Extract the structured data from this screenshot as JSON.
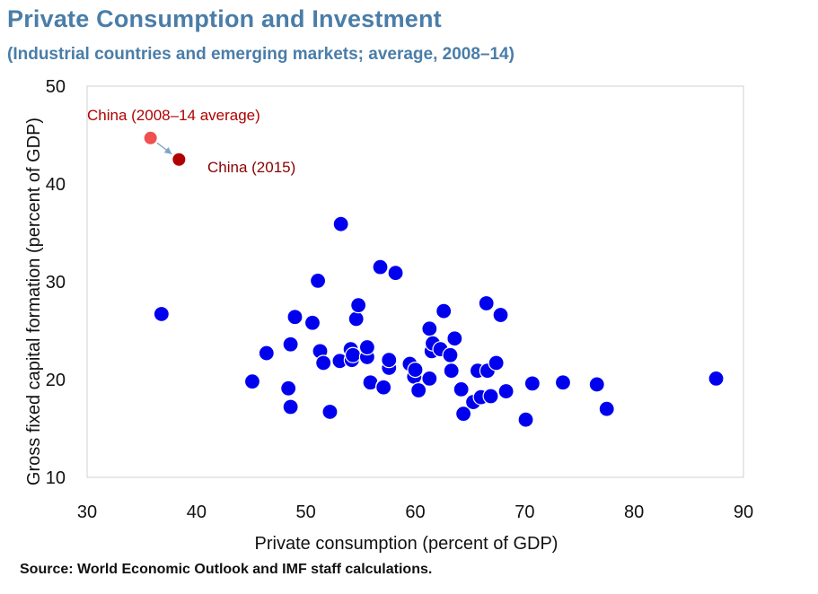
{
  "header": {
    "title": "Private Consumption and Investment",
    "subtitle": "(Industrial countries and emerging markets; average, 2008–14)"
  },
  "footer": {
    "source": "Source: World Economic Outlook and IMF staff  calculations."
  },
  "colors": {
    "title": "#4a7da8",
    "points": "#0000ee",
    "point_outline": "#ffffff",
    "china_avg": "#f05050",
    "china_2015": "#b00000",
    "china_avg_label": "#b00000",
    "china_2015_label": "#8b0000",
    "arrow": "#7fa3c8",
    "plot_border": "#d0d0d0"
  },
  "chart_data": {
    "type": "scatter",
    "title": "Private Consumption and Investment",
    "subtitle": "(Industrial countries and emerging markets; average, 2008–14)",
    "xlabel": "Private consumption (percent of GDP)",
    "ylabel": "Gross fixed capital formation (percent of GDP)",
    "xlim": [
      30,
      90
    ],
    "ylim": [
      10,
      50
    ],
    "xticks": [
      "30",
      "40",
      "50",
      "60",
      "70",
      "80",
      "90"
    ],
    "yticks": [
      "10",
      "20",
      "30",
      "40",
      "50"
    ],
    "grid": false,
    "legend": "none",
    "series": [
      {
        "points": [
          [
            36.8,
            26.7
          ],
          [
            45.1,
            19.8
          ],
          [
            46.4,
            22.7
          ],
          [
            48.4,
            19.1
          ],
          [
            48.6,
            17.2
          ],
          [
            48.6,
            23.6
          ],
          [
            49.0,
            26.4
          ],
          [
            50.6,
            25.8
          ],
          [
            51.1,
            30.1
          ],
          [
            51.3,
            22.9
          ],
          [
            51.6,
            21.7
          ],
          [
            52.2,
            16.7
          ],
          [
            53.1,
            21.9
          ],
          [
            53.2,
            35.9
          ],
          [
            54.1,
            23.1
          ],
          [
            54.2,
            22.0
          ],
          [
            54.3,
            22.5
          ],
          [
            54.6,
            26.2
          ],
          [
            54.8,
            27.6
          ],
          [
            55.6,
            22.3
          ],
          [
            55.6,
            23.3
          ],
          [
            55.9,
            19.7
          ],
          [
            56.8,
            31.5
          ],
          [
            57.1,
            19.3
          ],
          [
            57.1,
            19.2
          ],
          [
            57.6,
            21.2
          ],
          [
            57.6,
            22.0
          ],
          [
            58.2,
            30.9
          ],
          [
            59.5,
            21.6
          ],
          [
            59.9,
            20.3
          ],
          [
            60.0,
            21.0
          ],
          [
            60.3,
            18.9
          ],
          [
            61.3,
            25.2
          ],
          [
            61.3,
            20.1
          ],
          [
            61.5,
            22.9
          ],
          [
            61.6,
            23.7
          ],
          [
            62.3,
            23.1
          ],
          [
            62.6,
            27.0
          ],
          [
            63.2,
            22.5
          ],
          [
            63.3,
            20.9
          ],
          [
            63.6,
            24.2
          ],
          [
            64.2,
            19.0
          ],
          [
            64.4,
            16.5
          ],
          [
            65.3,
            17.7
          ],
          [
            65.7,
            20.9
          ],
          [
            66.0,
            18.2
          ],
          [
            66.5,
            27.8
          ],
          [
            66.6,
            20.9
          ],
          [
            66.9,
            18.3
          ],
          [
            67.4,
            21.7
          ],
          [
            67.8,
            26.6
          ],
          [
            68.3,
            18.8
          ],
          [
            70.1,
            15.9
          ],
          [
            70.7,
            19.6
          ],
          [
            73.5,
            19.7
          ],
          [
            76.6,
            19.5
          ],
          [
            77.5,
            17.0
          ],
          [
            87.5,
            20.1
          ]
        ]
      }
    ],
    "annotations": [
      {
        "label": "China (2008–14  average)",
        "x": 35.8,
        "y": 44.7
      },
      {
        "label": "China (2015)",
        "x": 38.4,
        "y": 42.5
      }
    ]
  }
}
